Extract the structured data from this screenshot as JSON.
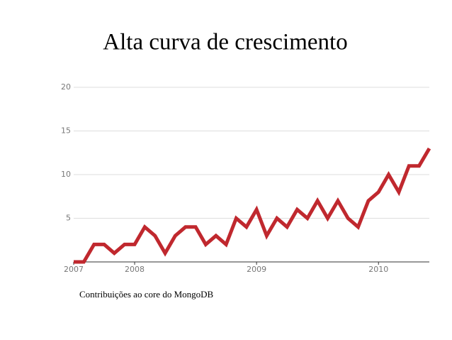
{
  "chart_data": {
    "type": "line",
    "title": "Alta curva de crescimento",
    "caption": "Contribuições ao core do MongoDB",
    "x": [
      2007.5,
      2007.583,
      2007.667,
      2007.75,
      2007.833,
      2007.917,
      2008,
      2008.083,
      2008.167,
      2008.25,
      2008.333,
      2008.417,
      2008.5,
      2008.583,
      2008.667,
      2008.75,
      2008.833,
      2008.917,
      2009,
      2009.083,
      2009.167,
      2009.25,
      2009.333,
      2009.417,
      2009.5,
      2009.583,
      2009.667,
      2009.75,
      2009.833,
      2009.917,
      2010,
      2010.083,
      2010.167,
      2010.25,
      2010.333,
      2010.417
    ],
    "values": [
      0,
      0,
      2,
      2,
      1,
      2,
      2,
      4,
      3,
      1,
      3,
      4,
      4,
      2,
      3,
      2,
      5,
      4,
      6,
      3,
      5,
      4,
      6,
      5,
      7,
      5,
      7,
      5,
      4,
      7,
      8,
      10,
      8,
      11,
      11,
      13
    ],
    "color": "#c0282e",
    "xlim": [
      2007.5,
      2010.417
    ],
    "xticks": [
      {
        "value": 2007.5,
        "label": "2007"
      },
      2008,
      2009,
      2010
    ],
    "ylim": [
      0,
      20
    ],
    "yticks": [
      5,
      10,
      15,
      20
    ],
    "grid": true
  }
}
